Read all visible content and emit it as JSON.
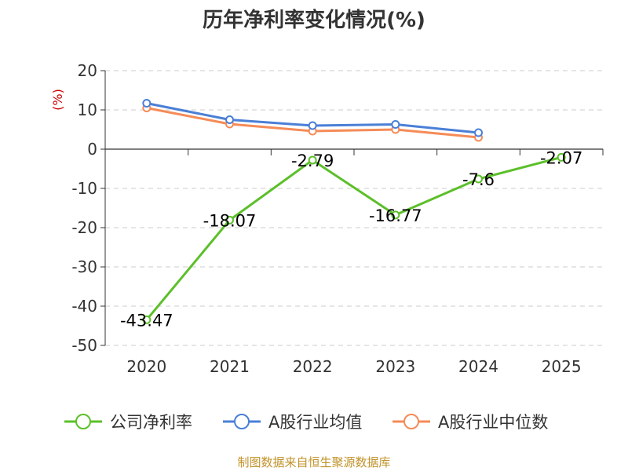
{
  "chart_data": {
    "type": "line",
    "title": "历年净利率变化情况(%)",
    "ylabel": "(%)",
    "categories": [
      "2020",
      "2021",
      "2022",
      "2023",
      "2024",
      "2025"
    ],
    "ylim": [
      -50,
      20
    ],
    "yticks": [
      "20",
      "10",
      "0",
      "-10",
      "-20",
      "-30",
      "-40",
      "-50"
    ],
    "grid": true,
    "legend_position": "bottom",
    "series": [
      {
        "name": "公司净利率",
        "color": "#5cbf2a",
        "values": [
          -43.47,
          -18.07,
          -2.79,
          -16.77,
          -7.6,
          -2.07
        ],
        "labels": [
          "-43.47",
          "-18.07",
          "-2.79",
          "-16.77",
          "-7.6",
          "-2.07"
        ]
      },
      {
        "name": "A股行业均值",
        "color": "#4a7fd6",
        "values": [
          11.7,
          7.5,
          6.0,
          6.3,
          4.2,
          null
        ]
      },
      {
        "name": "A股行业中位数",
        "color": "#f58b57",
        "values": [
          10.5,
          6.4,
          4.6,
          5.0,
          3.0,
          null
        ]
      }
    ]
  },
  "source": "制图数据来自恒生聚源数据库"
}
